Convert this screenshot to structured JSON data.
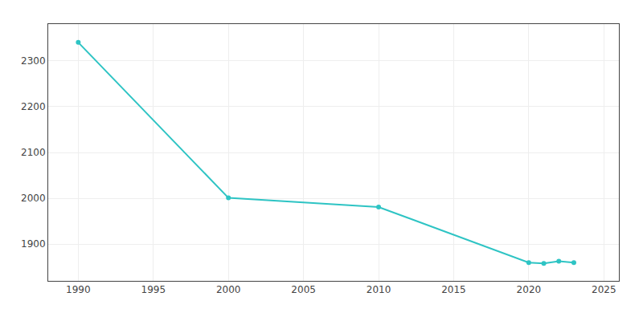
{
  "chart_data": {
    "type": "line",
    "x": [
      1990,
      2000,
      2010,
      2020,
      2021,
      2022,
      2023
    ],
    "values": [
      2340,
      2001,
      1981,
      1860,
      1858,
      1863,
      1860
    ],
    "color": "#2EC4C4",
    "marker": "circle",
    "xlim": [
      1988,
      2026
    ],
    "ylim": [
      1820,
      2380
    ],
    "xticks": [
      1990,
      1995,
      2000,
      2005,
      2010,
      2015,
      2020,
      2025
    ],
    "yticks": [
      1900,
      2000,
      2100,
      2200,
      2300
    ],
    "grid": true
  }
}
